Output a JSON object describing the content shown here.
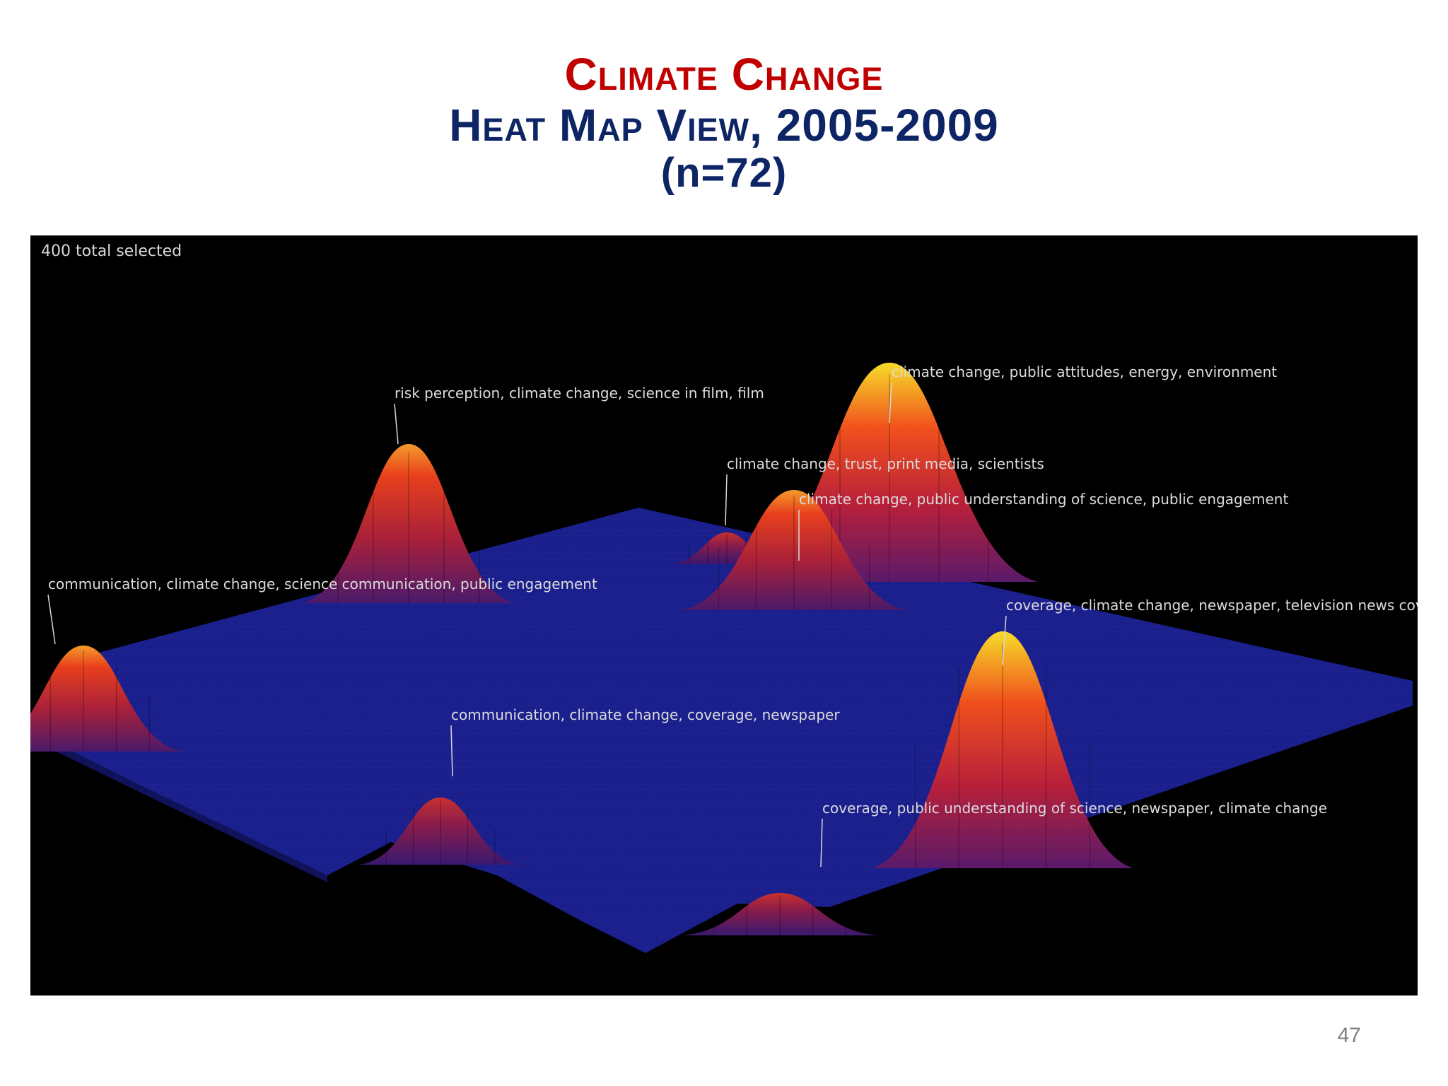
{
  "slide": {
    "title_line1": "Climate Change",
    "title_line2": "Heat Map View, 2005-2009",
    "title_line3": "(n=72)",
    "page_number": "47"
  },
  "viz": {
    "status_text": "400 total selected"
  },
  "colors": {
    "title_red": "#c00000",
    "title_navy": "#0e2565",
    "panel_background": "#000000",
    "plane": "#1a1f8c",
    "peak_low": "#8b1c4a",
    "peak_mid": "#e83a1c",
    "peak_high": "#f5d21e"
  },
  "chart_data": {
    "type": "heatmap",
    "title": "",
    "view": "3D surface",
    "peaks": [
      {
        "label": "risk perception, climate change, science in film, film",
        "intensity": "medium"
      },
      {
        "label": "climate change, public attitudes, energy, environment",
        "intensity": "high"
      },
      {
        "label": "climate change, trust, print media, scientists",
        "intensity": "low"
      },
      {
        "label": "climate change, public understanding of science, public engagement",
        "intensity": "medium"
      },
      {
        "label": "communication, climate change, science communication, public engagement",
        "intensity": "medium"
      },
      {
        "label": "coverage, climate change, newspaper, television news coverage",
        "intensity": "high"
      },
      {
        "label": "communication, climate change, coverage, newspaper",
        "intensity": "low"
      },
      {
        "label": "coverage, public understanding of science, newspaper, climate change",
        "intensity": "low"
      }
    ]
  }
}
